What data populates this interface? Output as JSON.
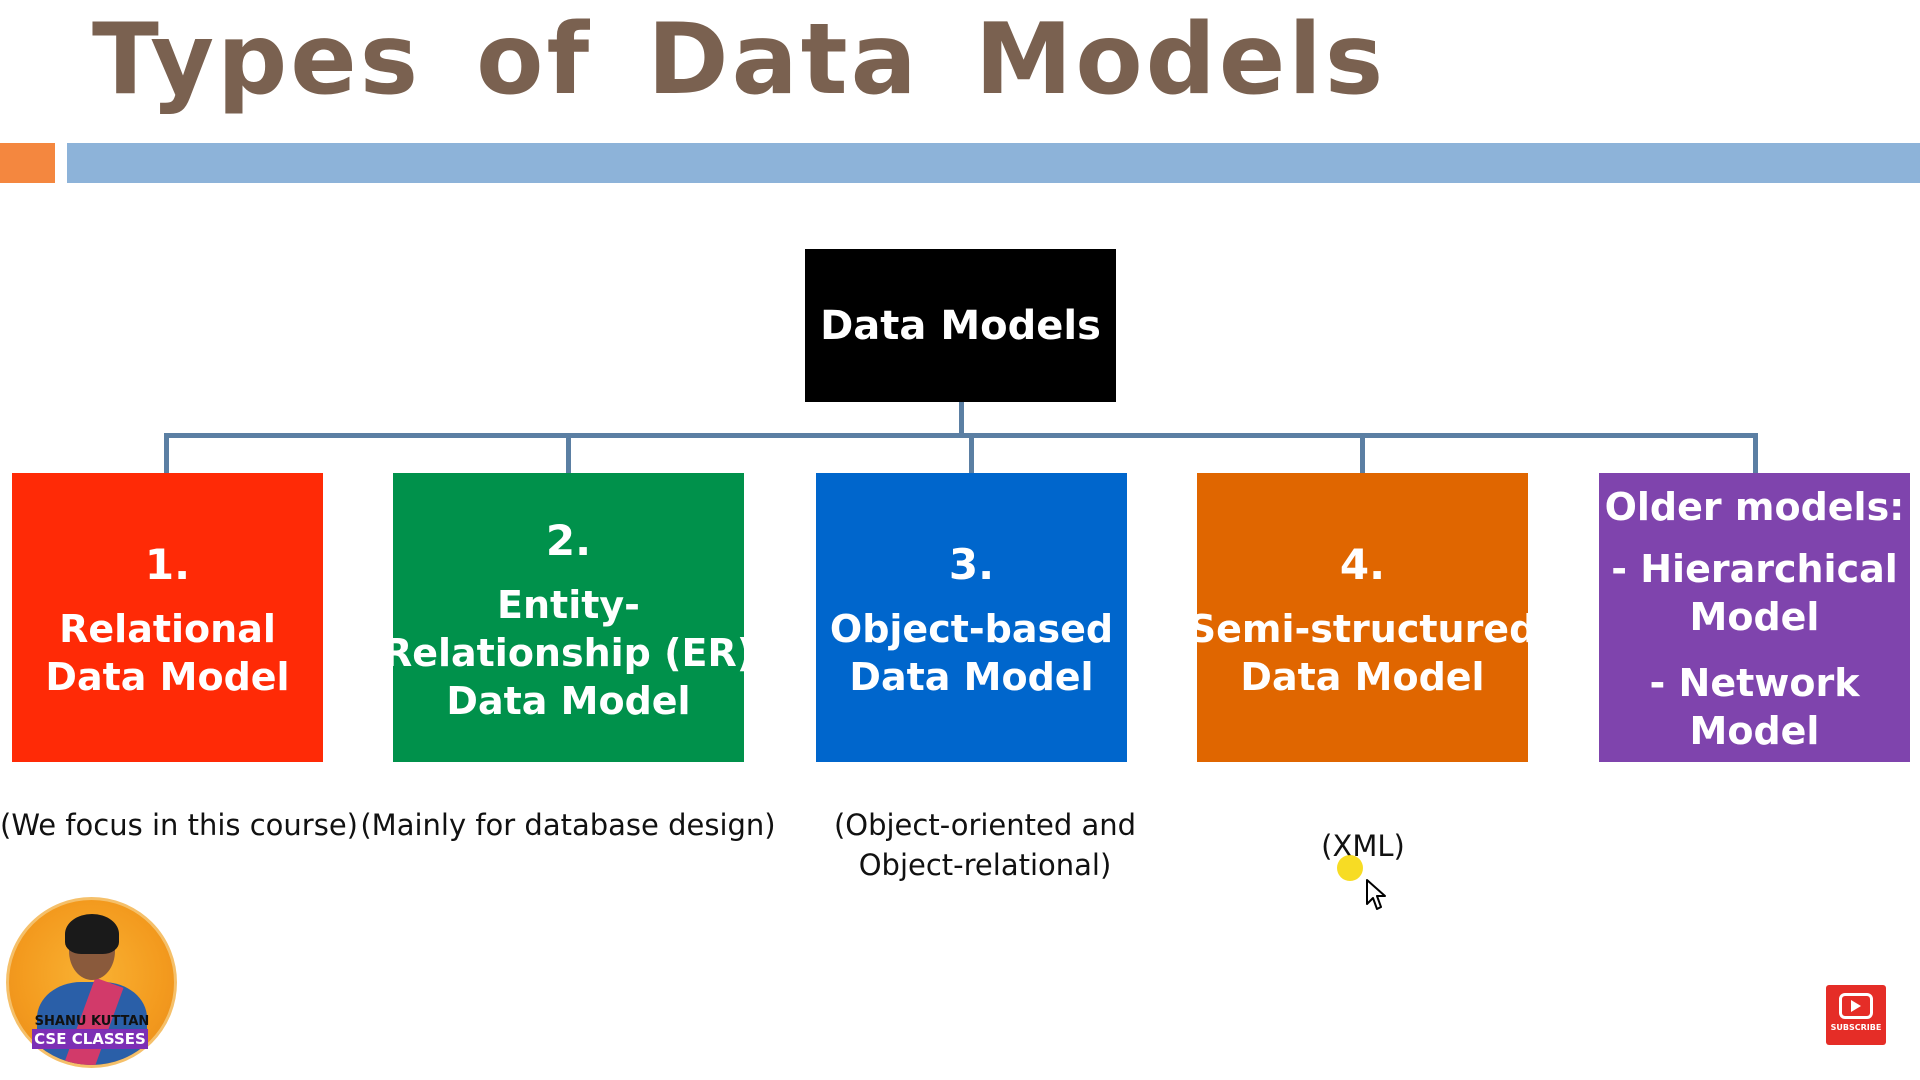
{
  "slide": {
    "title": "Types of Data Models",
    "root": "Data Models",
    "categories": [
      {
        "number": "1.",
        "lines": [
          "Relational",
          "Data Model"
        ],
        "color": "#ff2a06",
        "note": [
          "(We focus in this course)"
        ]
      },
      {
        "number": "2.",
        "lines": [
          "Entity-",
          "Relationship (ER)",
          "Data Model"
        ],
        "color": "#00914b",
        "note": [
          "(Mainly for database design)"
        ]
      },
      {
        "number": "3.",
        "lines": [
          "Object-based",
          "Data Model"
        ],
        "color": "#0066cc",
        "note": [
          "(Object-oriented and",
          "Object-relational)"
        ]
      },
      {
        "number": "4.",
        "lines": [
          "Semi-structured",
          "Data Model"
        ],
        "color": "#e06600",
        "note": [
          "(XML)"
        ]
      },
      {
        "heading": "Older models:",
        "lines": [
          "- Hierarchical",
          "Model",
          "- Network",
          "Model"
        ],
        "color": "#7f44ad"
      }
    ]
  },
  "channel": {
    "name": "SHANU KUTTAN",
    "brand": "CSE CLASSES",
    "subscribe_label": "SUBSCRIBE"
  },
  "colors": {
    "title": "#7a6150",
    "accent_orange": "#f4873f",
    "accent_blue": "#8db3d9",
    "connector": "#5b7fa3"
  }
}
